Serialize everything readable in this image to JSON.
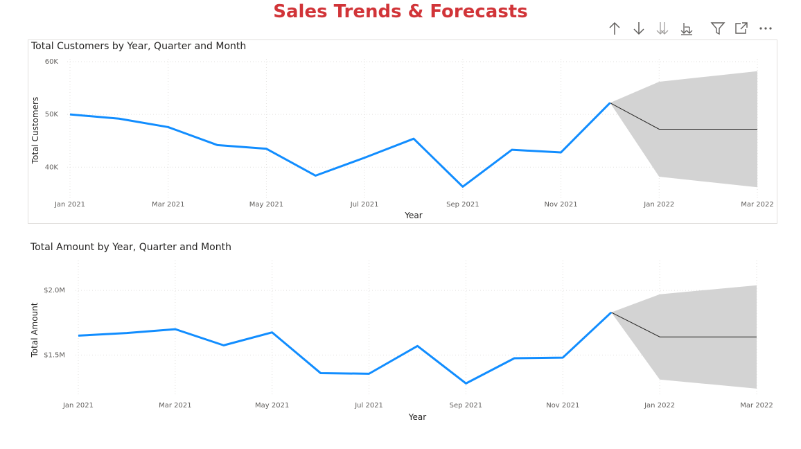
{
  "page": {
    "title": "Sales Trends & Forecasts"
  },
  "toolbar": {
    "icons": [
      "drill-up-icon",
      "drill-down-icon",
      "expand-next-level-icon",
      "expand-all-icon",
      "filter-icon",
      "focus-mode-icon",
      "more-options-icon"
    ]
  },
  "colors": {
    "title": "#d13438",
    "series": "#118dff",
    "forecast": "#252423",
    "band": "#d3d3d3"
  },
  "chart_data": [
    {
      "type": "line",
      "title": "Total Customers by Year, Quarter and Month",
      "xlabel": "Year",
      "ylabel": "Total Customers",
      "x_tick_labels": [
        "Jan 2021",
        "Mar 2021",
        "May 2021",
        "Jul 2021",
        "Sep 2021",
        "Nov 2021",
        "Jan 2022",
        "Mar 2022"
      ],
      "y_ticks": [
        40000,
        50000,
        60000
      ],
      "y_tick_labels": [
        "40K",
        "50K",
        "60K"
      ],
      "ylim": [
        34000,
        60000
      ],
      "grid": true,
      "series": [
        {
          "x": [
            "Jan 2021",
            "Feb 2021",
            "Mar 2021",
            "Apr 2021",
            "May 2021",
            "Jun 2021",
            "Jul 2021",
            "Aug 2021",
            "Sep 2021",
            "Oct 2021",
            "Nov 2021",
            "Dec 2021"
          ],
          "values": [
            50000,
            49200,
            47600,
            44200,
            43500,
            38400,
            41800,
            45400,
            36300,
            43300,
            42800,
            52200
          ]
        }
      ],
      "forecast": {
        "x": [
          "Dec 2021",
          "Jan 2022",
          "Feb 2022",
          "Mar 2022"
        ],
        "values": [
          52200,
          47200,
          47200,
          47200
        ],
        "upper": [
          52200,
          56200,
          57200,
          58200
        ],
        "lower": [
          52200,
          38200,
          37200,
          36200
        ]
      }
    },
    {
      "type": "line",
      "title": "Total Amount by Year, Quarter and Month",
      "xlabel": "Year",
      "ylabel": "Total Amount",
      "x_tick_labels": [
        "Jan 2021",
        "Mar 2021",
        "May 2021",
        "Jul 2021",
        "Sep 2021",
        "Nov 2021",
        "Jan 2022",
        "Mar 2022"
      ],
      "y_ticks": [
        1500000,
        2000000
      ],
      "y_tick_labels": [
        "$1.5M",
        "$2.0M"
      ],
      "ylim": [
        1180000,
        2210000
      ],
      "grid": true,
      "series": [
        {
          "x": [
            "Jan 2021",
            "Feb 2021",
            "Mar 2021",
            "Apr 2021",
            "May 2021",
            "Jun 2021",
            "Jul 2021",
            "Aug 2021",
            "Sep 2021",
            "Oct 2021",
            "Nov 2021",
            "Dec 2021"
          ],
          "values": [
            1650000,
            1670000,
            1700000,
            1575000,
            1675000,
            1360000,
            1355000,
            1570000,
            1280000,
            1475000,
            1480000,
            1830000
          ]
        }
      ],
      "forecast": {
        "x": [
          "Dec 2021",
          "Jan 2022",
          "Feb 2022",
          "Mar 2022"
        ],
        "values": [
          1830000,
          1640000,
          1640000,
          1640000
        ],
        "upper": [
          1830000,
          1970000,
          2005000,
          2040000
        ],
        "lower": [
          1830000,
          1310000,
          1275000,
          1240000
        ]
      }
    }
  ]
}
